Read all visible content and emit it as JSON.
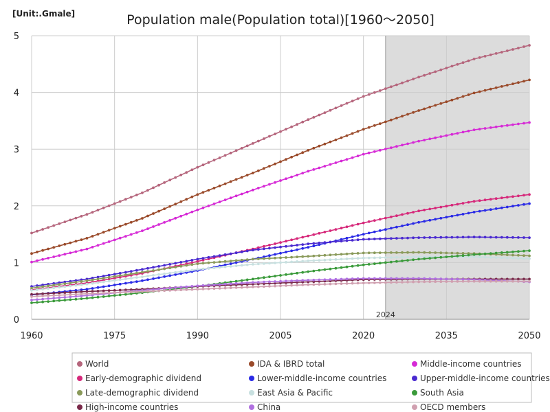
{
  "chart_data": {
    "type": "line",
    "title": "Population male(Population total)[1960～2050]",
    "unit_label": "[Unit:.Gmale]",
    "xlim": [
      1960,
      2050
    ],
    "ylim": [
      0,
      5
    ],
    "x_ticks": [
      1960,
      1975,
      1990,
      2005,
      2020,
      2035,
      2050
    ],
    "y_ticks": [
      0,
      1,
      2,
      3,
      4,
      5
    ],
    "projection_start": 2024,
    "projection_label": "2024",
    "highlight_range": [
      2024,
      2050
    ],
    "series": [
      {
        "name": "World",
        "color": "#b5657c",
        "points": [
          [
            1960,
            1.52
          ],
          [
            1970,
            1.85
          ],
          [
            1980,
            2.23
          ],
          [
            1990,
            2.68
          ],
          [
            2000,
            3.1
          ],
          [
            2010,
            3.52
          ],
          [
            2020,
            3.93
          ],
          [
            2030,
            4.27
          ],
          [
            2040,
            4.59
          ],
          [
            2050,
            4.83
          ]
        ]
      },
      {
        "name": "IDA & IBRD total",
        "color": "#9a4a2a",
        "points": [
          [
            1960,
            1.16
          ],
          [
            1970,
            1.43
          ],
          [
            1980,
            1.78
          ],
          [
            1990,
            2.2
          ],
          [
            2000,
            2.58
          ],
          [
            2010,
            2.98
          ],
          [
            2020,
            3.35
          ],
          [
            2030,
            3.68
          ],
          [
            2040,
            3.99
          ],
          [
            2050,
            4.22
          ]
        ]
      },
      {
        "name": "Middle-income countries",
        "color": "#d62ad6",
        "points": [
          [
            1960,
            1.01
          ],
          [
            1970,
            1.24
          ],
          [
            1980,
            1.56
          ],
          [
            1990,
            1.93
          ],
          [
            2000,
            2.28
          ],
          [
            2010,
            2.61
          ],
          [
            2020,
            2.91
          ],
          [
            2030,
            3.14
          ],
          [
            2040,
            3.34
          ],
          [
            2050,
            3.47
          ]
        ]
      },
      {
        "name": "Early-demographic dividend",
        "color": "#d6287a",
        "points": [
          [
            1960,
            0.52
          ],
          [
            1970,
            0.64
          ],
          [
            1980,
            0.81
          ],
          [
            1990,
            1.02
          ],
          [
            2000,
            1.24
          ],
          [
            2010,
            1.47
          ],
          [
            2020,
            1.7
          ],
          [
            2030,
            1.91
          ],
          [
            2040,
            2.08
          ],
          [
            2050,
            2.2
          ]
        ]
      },
      {
        "name": "Lower-middle-income countries",
        "color": "#2a2ae6",
        "points": [
          [
            1960,
            0.43
          ],
          [
            1970,
            0.53
          ],
          [
            1980,
            0.68
          ],
          [
            1990,
            0.86
          ],
          [
            2000,
            1.06
          ],
          [
            2010,
            1.27
          ],
          [
            2020,
            1.5
          ],
          [
            2030,
            1.71
          ],
          [
            2040,
            1.89
          ],
          [
            2050,
            2.04
          ]
        ]
      },
      {
        "name": "Upper-middle-income countries",
        "color": "#4a2ad0",
        "points": [
          [
            1960,
            0.58
          ],
          [
            1970,
            0.71
          ],
          [
            1980,
            0.88
          ],
          [
            1990,
            1.06
          ],
          [
            2000,
            1.22
          ],
          [
            2010,
            1.33
          ],
          [
            2020,
            1.41
          ],
          [
            2030,
            1.44
          ],
          [
            2040,
            1.45
          ],
          [
            2050,
            1.44
          ]
        ]
      },
      {
        "name": "Late-demographic dividend",
        "color": "#8a9a5a",
        "points": [
          [
            1960,
            0.55
          ],
          [
            1970,
            0.68
          ],
          [
            1980,
            0.83
          ],
          [
            1990,
            0.98
          ],
          [
            2000,
            1.06
          ],
          [
            2010,
            1.11
          ],
          [
            2020,
            1.17
          ],
          [
            2030,
            1.18
          ],
          [
            2040,
            1.16
          ],
          [
            2050,
            1.12
          ]
        ]
      },
      {
        "name": "East Asia & Pacific",
        "color": "#c8e0e0",
        "points": [
          [
            1960,
            0.51
          ],
          [
            1970,
            0.62
          ],
          [
            1980,
            0.75
          ],
          [
            1990,
            0.88
          ],
          [
            2000,
            0.97
          ],
          [
            2010,
            1.03
          ],
          [
            2020,
            1.08
          ],
          [
            2030,
            1.1
          ],
          [
            2040,
            1.1
          ],
          [
            2050,
            1.07
          ]
        ]
      },
      {
        "name": "South Asia",
        "color": "#3a9a3a",
        "points": [
          [
            1960,
            0.29
          ],
          [
            1970,
            0.37
          ],
          [
            1980,
            0.47
          ],
          [
            1990,
            0.58
          ],
          [
            2000,
            0.71
          ],
          [
            2010,
            0.84
          ],
          [
            2020,
            0.96
          ],
          [
            2030,
            1.06
          ],
          [
            2040,
            1.14
          ],
          [
            2050,
            1.21
          ]
        ]
      },
      {
        "name": "High-income countries",
        "color": "#7a2a4a",
        "points": [
          [
            1960,
            0.44
          ],
          [
            1970,
            0.49
          ],
          [
            1980,
            0.53
          ],
          [
            1990,
            0.58
          ],
          [
            2000,
            0.62
          ],
          [
            2010,
            0.66
          ],
          [
            2020,
            0.7
          ],
          [
            2030,
            0.71
          ],
          [
            2040,
            0.71
          ],
          [
            2050,
            0.71
          ]
        ]
      },
      {
        "name": "China",
        "color": "#b070e0",
        "points": [
          [
            1960,
            0.34
          ],
          [
            1970,
            0.42
          ],
          [
            1980,
            0.51
          ],
          [
            1990,
            0.59
          ],
          [
            2000,
            0.65
          ],
          [
            2010,
            0.69
          ],
          [
            2020,
            0.72
          ],
          [
            2030,
            0.72
          ],
          [
            2040,
            0.7
          ],
          [
            2050,
            0.66
          ]
        ]
      },
      {
        "name": "OECD members",
        "color": "#d0a0b0",
        "points": [
          [
            1960,
            0.4
          ],
          [
            1970,
            0.45
          ],
          [
            1980,
            0.49
          ],
          [
            1990,
            0.53
          ],
          [
            2000,
            0.57
          ],
          [
            2010,
            0.61
          ],
          [
            2020,
            0.64
          ],
          [
            2030,
            0.66
          ],
          [
            2040,
            0.67
          ],
          [
            2050,
            0.67
          ]
        ]
      }
    ]
  }
}
